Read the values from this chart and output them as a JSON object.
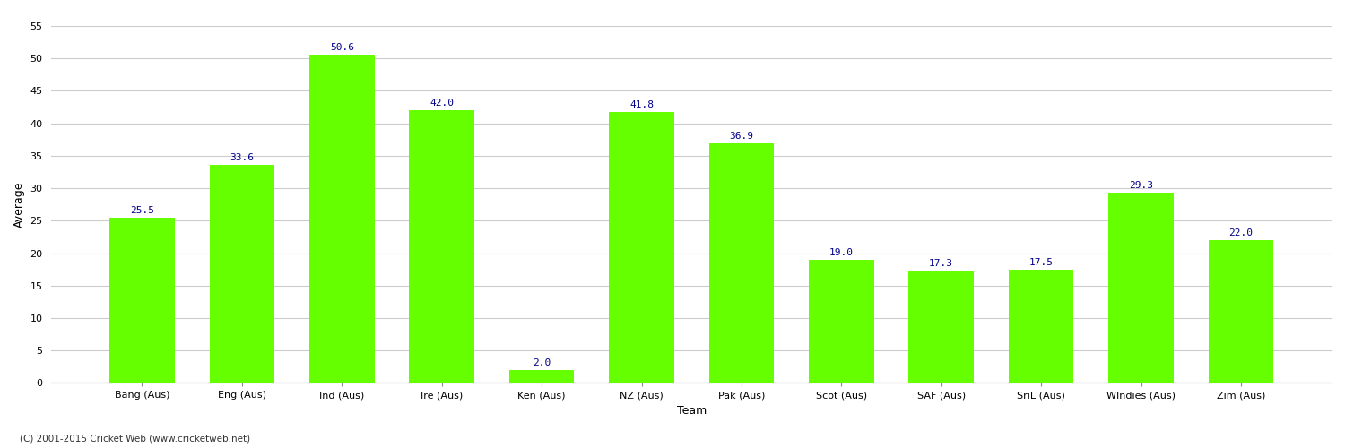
{
  "categories": [
    "Bang (Aus)",
    "Eng (Aus)",
    "Ind (Aus)",
    "Ire (Aus)",
    "Ken (Aus)",
    "NZ (Aus)",
    "Pak (Aus)",
    "Scot (Aus)",
    "SAF (Aus)",
    "SriL (Aus)",
    "WIndies (Aus)",
    "Zim (Aus)"
  ],
  "values": [
    25.5,
    33.6,
    50.6,
    42.0,
    2.0,
    41.8,
    36.9,
    19.0,
    17.3,
    17.5,
    29.3,
    22.0
  ],
  "bar_color": "#66FF00",
  "label_color": "#00008B",
  "xlabel": "Team",
  "ylabel": "Average",
  "ylim": [
    0,
    55
  ],
  "yticks": [
    0,
    5,
    10,
    15,
    20,
    25,
    30,
    35,
    40,
    45,
    50,
    55
  ],
  "grid_color": "#cccccc",
  "bg_color": "#ffffff",
  "footer": "(C) 2001-2015 Cricket Web (www.cricketweb.net)",
  "label_fontsize": 8,
  "axis_label_fontsize": 9,
  "tick_fontsize": 8,
  "value_fontsize": 8
}
